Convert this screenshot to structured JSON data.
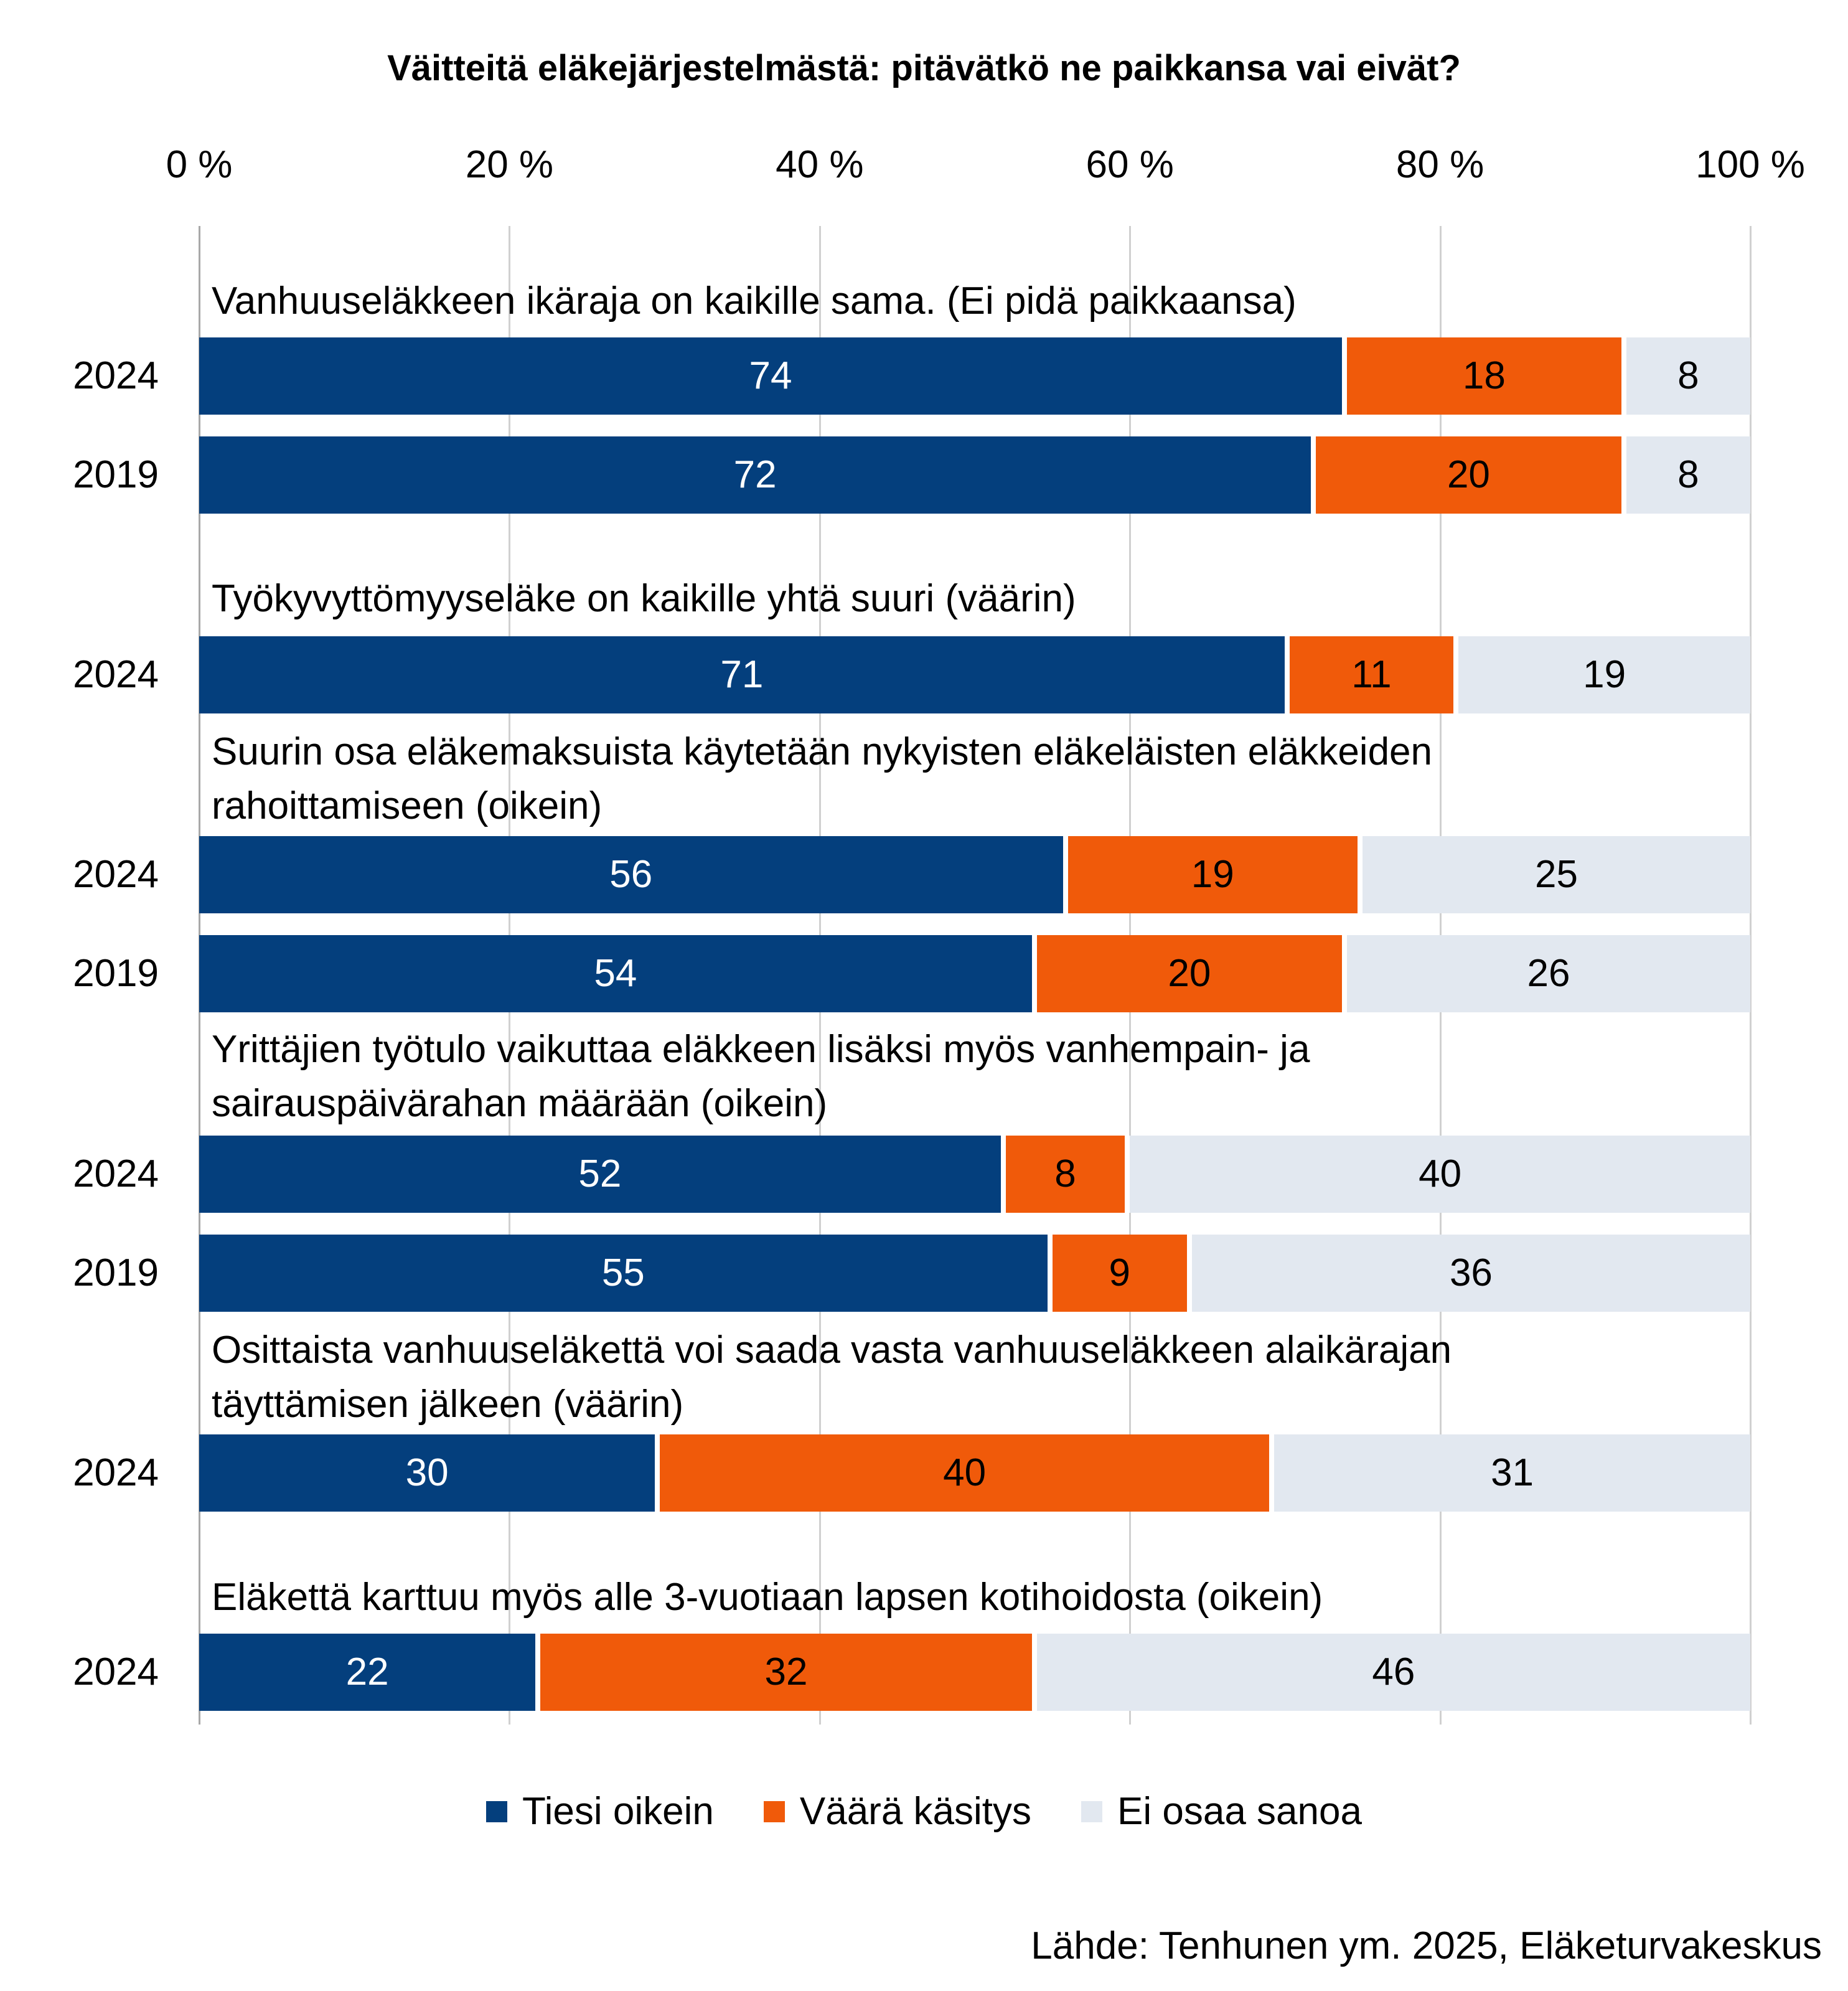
{
  "chart_data": {
    "type": "bar",
    "orientation": "horizontal",
    "stacked": true,
    "title": "Väitteitä eläkejärjestelmästä: pitävätkö ne paikkansa vai eivät?",
    "xlim": [
      0,
      100
    ],
    "x_ticks": [
      "0 %",
      "20 %",
      "40 %",
      "60 %",
      "80 %",
      "100 %"
    ],
    "grid": true,
    "legend_position": "bottom",
    "series": [
      {
        "name": "Tiesi oikein",
        "color": "#043f7d",
        "text_color": "#ffffff"
      },
      {
        "name": "Väärä käsitys",
        "color": "#f05a0a",
        "text_color": "#000000"
      },
      {
        "name": "Ei osaa sanoa",
        "color": "#e2e8f0",
        "text_color": "#000000"
      }
    ],
    "groups": [
      {
        "label": "Vanhuuseläkkeen ikäraja on kaikille sama. (Ei pidä paikkaansa)",
        "rows": [
          {
            "year": "2024",
            "values": [
              74,
              18,
              8
            ]
          },
          {
            "year": "2019",
            "values": [
              72,
              20,
              8
            ]
          }
        ]
      },
      {
        "label": "Työkyvyttömyyseläke on kaikille yhtä suuri (väärin)",
        "rows": [
          {
            "year": "2024",
            "values": [
              71,
              11,
              19
            ]
          }
        ]
      },
      {
        "label": "Suurin osa eläkemaksuista käytetään nykyisten eläkeläisten eläkkeiden\nrahoittamiseen (oikein)",
        "rows": [
          {
            "year": "2024",
            "values": [
              56,
              19,
              25
            ]
          },
          {
            "year": "2019",
            "values": [
              54,
              20,
              26
            ]
          }
        ]
      },
      {
        "label": "Yrittäjien työtulo vaikuttaa eläkkeen lisäksi myös vanhempain- ja\nsairauspäivärahan määrään (oikein)",
        "rows": [
          {
            "year": "2024",
            "values": [
              52,
              8,
              40
            ]
          },
          {
            "year": "2019",
            "values": [
              55,
              9,
              36
            ]
          }
        ]
      },
      {
        "label": "Osittaista vanhuuseläkettä voi saada vasta vanhuuseläkkeen alaikärajan\ntäyttämisen jälkeen (väärin)",
        "rows": [
          {
            "year": "2024",
            "values": [
              30,
              40,
              31
            ]
          }
        ]
      },
      {
        "label": "Eläkettä karttuu myös alle 3-vuotiaan lapsen kotihoidosta (oikein)",
        "rows": [
          {
            "year": "2024",
            "values": [
              22,
              32,
              46
            ]
          }
        ]
      }
    ]
  },
  "source": "Lähde: Tenhunen ym. 2025, Eläketurvakeskus"
}
